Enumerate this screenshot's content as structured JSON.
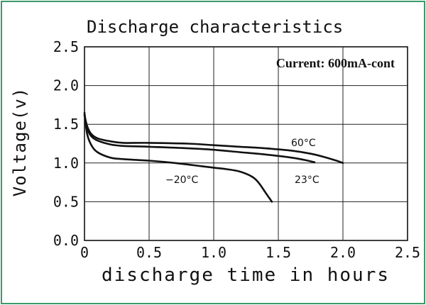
{
  "chart_data": {
    "type": "line",
    "title": "Discharge characteristics",
    "xlabel": "discharge time in hours",
    "ylabel": "Voltage(v)",
    "annotation": "Current: 600mA-cont",
    "xlim": [
      0,
      2.5
    ],
    "ylim": [
      0,
      2.5
    ],
    "x_ticks": [
      "0",
      "0.5",
      "1.0",
      "1.5",
      "2.0",
      "2.5"
    ],
    "y_ticks": [
      "0.0",
      "0.5",
      "1.0",
      "1.5",
      "2.0",
      "2.5"
    ],
    "grid": true,
    "series": [
      {
        "name": "60°C",
        "x": [
          0,
          0.02,
          0.05,
          0.1,
          0.2,
          0.3,
          0.5,
          0.8,
          1.0,
          1.2,
          1.4,
          1.6,
          1.75,
          1.85,
          1.95,
          2.0
        ],
        "y": [
          1.62,
          1.48,
          1.38,
          1.32,
          1.28,
          1.26,
          1.26,
          1.25,
          1.23,
          1.21,
          1.19,
          1.16,
          1.12,
          1.08,
          1.03,
          1.0
        ]
      },
      {
        "name": "23°C",
        "x": [
          0,
          0.02,
          0.05,
          0.1,
          0.2,
          0.3,
          0.5,
          0.8,
          1.0,
          1.2,
          1.4,
          1.6,
          1.7,
          1.78
        ],
        "y": [
          1.62,
          1.45,
          1.35,
          1.29,
          1.24,
          1.22,
          1.21,
          1.19,
          1.17,
          1.14,
          1.11,
          1.07,
          1.04,
          1.01
        ]
      },
      {
        "name": "−20°C",
        "x": [
          0,
          0.02,
          0.05,
          0.1,
          0.2,
          0.3,
          0.5,
          0.7,
          0.9,
          1.0,
          1.1,
          1.2,
          1.3,
          1.35,
          1.4,
          1.45
        ],
        "y": [
          1.65,
          1.38,
          1.24,
          1.14,
          1.07,
          1.05,
          1.03,
          1.0,
          0.96,
          0.94,
          0.92,
          0.89,
          0.82,
          0.74,
          0.62,
          0.5
        ]
      }
    ],
    "series_labels": [
      "60°C",
      "23°C",
      "−20°C"
    ]
  }
}
